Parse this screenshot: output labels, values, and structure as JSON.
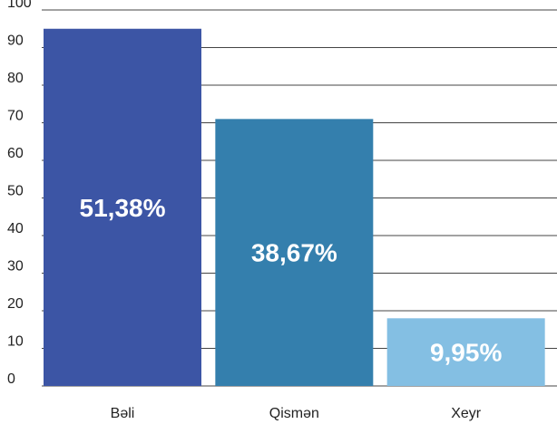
{
  "chart_data": {
    "type": "bar",
    "categories": [
      "Bəli",
      "Qismən",
      "Xeyr"
    ],
    "values": [
      95,
      71,
      18
    ],
    "data_labels": [
      "51,38%",
      "38,67%",
      "9,95%"
    ],
    "colors": [
      "#3c55a5",
      "#347fad",
      "#84bfe3"
    ],
    "yticks": [
      0,
      10,
      20,
      30,
      40,
      50,
      60,
      70,
      80,
      90,
      100
    ],
    "ylim": [
      0,
      100
    ],
    "grid": true,
    "legend": "none",
    "title": "",
    "xlabel": "",
    "ylabel": ""
  }
}
